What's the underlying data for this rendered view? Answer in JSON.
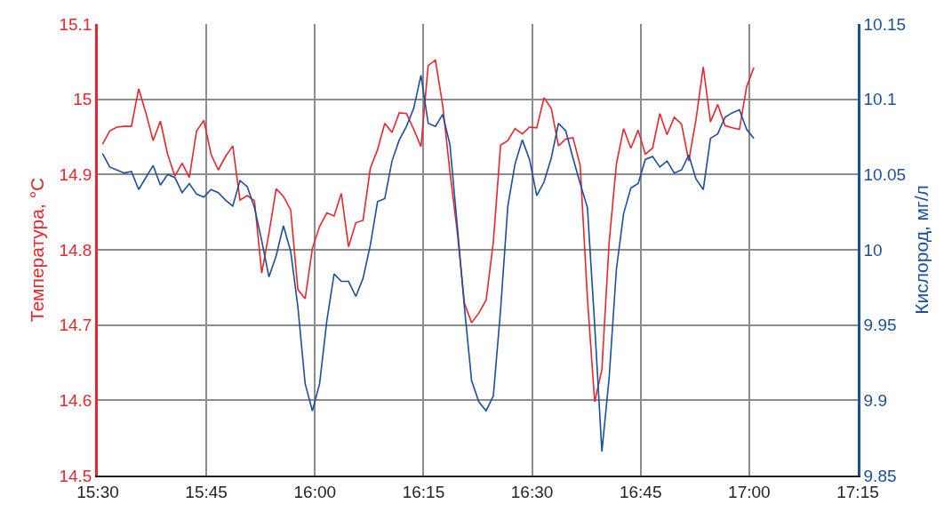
{
  "chart_data": {
    "type": "line",
    "ylabel": "Температура, °C",
    "y2label": "Кислород, мг/л",
    "x": [
      15.5108,
      15.5275,
      15.5442,
      15.5608,
      15.5775,
      15.5942,
      15.6108,
      15.6275,
      15.6442,
      15.6608,
      15.6775,
      15.6942,
      15.7108,
      15.7275,
      15.7442,
      15.7608,
      15.7775,
      15.7942,
      15.8108,
      15.8275,
      15.8442,
      15.8608,
      15.8775,
      15.8942,
      15.9108,
      15.9275,
      15.9442,
      15.9608,
      15.9775,
      15.9942,
      16.0108,
      16.0275,
      16.0442,
      16.0608,
      16.0775,
      16.0942,
      16.1108,
      16.1275,
      16.1442,
      16.1608,
      16.1775,
      16.1942,
      16.2108,
      16.2275,
      16.2442,
      16.2608,
      16.2775,
      16.2942,
      16.3108,
      16.3275,
      16.3442,
      16.3608,
      16.3775,
      16.3942,
      16.4108,
      16.4275,
      16.4442,
      16.4608,
      16.4775,
      16.4942,
      16.5108,
      16.5275,
      16.5442,
      16.5608,
      16.5775,
      16.5942,
      16.6108,
      16.6275,
      16.6442,
      16.6608,
      16.6775,
      16.6942,
      16.7108,
      16.7275,
      16.7442,
      16.7608,
      16.7775,
      16.7942,
      16.8108,
      16.8275,
      16.8442,
      16.8608,
      16.8775,
      16.8942,
      16.9108,
      16.9275,
      16.9442,
      16.9608,
      16.9775,
      16.9942,
      17.0108
    ],
    "series": [
      {
        "color": "#e8262b",
        "axis": "y",
        "values": [
          14.94,
          14.958,
          14.963,
          14.964,
          14.964,
          15.014,
          14.982,
          14.945,
          14.971,
          14.927,
          14.898,
          14.915,
          14.896,
          14.958,
          14.972,
          14.927,
          14.906,
          14.924,
          14.938,
          14.866,
          14.872,
          14.865,
          14.769,
          14.822,
          14.881,
          14.871,
          14.853,
          14.747,
          14.735,
          14.802,
          14.831,
          14.849,
          14.845,
          14.875,
          14.804,
          14.836,
          14.839,
          14.908,
          14.933,
          14.968,
          14.956,
          14.982,
          14.981,
          14.96,
          14.937,
          15.045,
          15.052,
          14.992,
          14.904,
          14.825,
          14.729,
          14.703,
          14.716,
          14.733,
          14.81,
          14.939,
          14.945,
          14.961,
          14.954,
          14.963,
          14.962,
          15.002,
          14.988,
          14.938,
          14.947,
          14.949,
          14.912,
          14.735,
          14.598,
          14.641,
          14.81,
          14.914,
          14.961,
          14.935,
          14.959,
          14.927,
          14.935,
          14.981,
          14.953,
          14.976,
          14.967,
          14.918,
          14.973,
          15.043,
          14.97,
          14.993,
          14.965,
          14.962,
          14.96,
          15.017,
          15.042
        ]
      },
      {
        "color": "#1a4f9c",
        "axis": "y2",
        "values": [
          10.064,
          10.055,
          10.053,
          10.051,
          10.052,
          10.04,
          10.048,
          10.056,
          10.043,
          10.05,
          10.048,
          10.038,
          10.044,
          10.037,
          10.035,
          10.04,
          10.038,
          10.033,
          10.029,
          10.046,
          10.042,
          10.028,
          10.006,
          9.982,
          9.996,
          10.016,
          9.999,
          9.962,
          9.911,
          9.893,
          9.911,
          9.953,
          9.984,
          9.979,
          9.979,
          9.969,
          9.981,
          10.003,
          10.032,
          10.034,
          10.059,
          10.073,
          10.082,
          10.094,
          10.116,
          10.084,
          10.082,
          10.09,
          10.07,
          10.017,
          9.962,
          9.913,
          9.899,
          9.893,
          9.903,
          9.96,
          10.029,
          10.057,
          10.073,
          10.06,
          10.036,
          10.045,
          10.061,
          10.084,
          10.079,
          10.061,
          10.044,
          10.028,
          9.95,
          9.866,
          9.915,
          9.987,
          10.024,
          10.041,
          10.044,
          10.06,
          10.062,
          10.055,
          10.059,
          10.051,
          10.053,
          10.063,
          10.047,
          10.04,
          10.074,
          10.077,
          10.088,
          10.091,
          10.093,
          10.08,
          10.074
        ]
      }
    ],
    "xlim": [
      15.5,
      17.25
    ],
    "xticks": [
      {
        "value": 15.5,
        "label": "15:30"
      },
      {
        "value": 15.75,
        "label": "15:45"
      },
      {
        "value": 16,
        "label": "16:00"
      },
      {
        "value": 16.25,
        "label": "16:15"
      },
      {
        "value": 16.5,
        "label": "16:30"
      },
      {
        "value": 16.75,
        "label": "16:45"
      },
      {
        "value": 17,
        "label": "17:00"
      },
      {
        "value": 17.25,
        "label": "17:15"
      }
    ],
    "ylim": [
      14.5,
      15.1
    ],
    "yticks": [
      14.5,
      14.6,
      14.7,
      14.8,
      14.9,
      15,
      15.1
    ],
    "y2lim": [
      9.85,
      10.15
    ],
    "y2ticks": [
      9.85,
      9.9,
      9.95,
      10,
      10.05,
      10.1,
      10.15
    ],
    "grid": true,
    "line_style": "solid"
  }
}
